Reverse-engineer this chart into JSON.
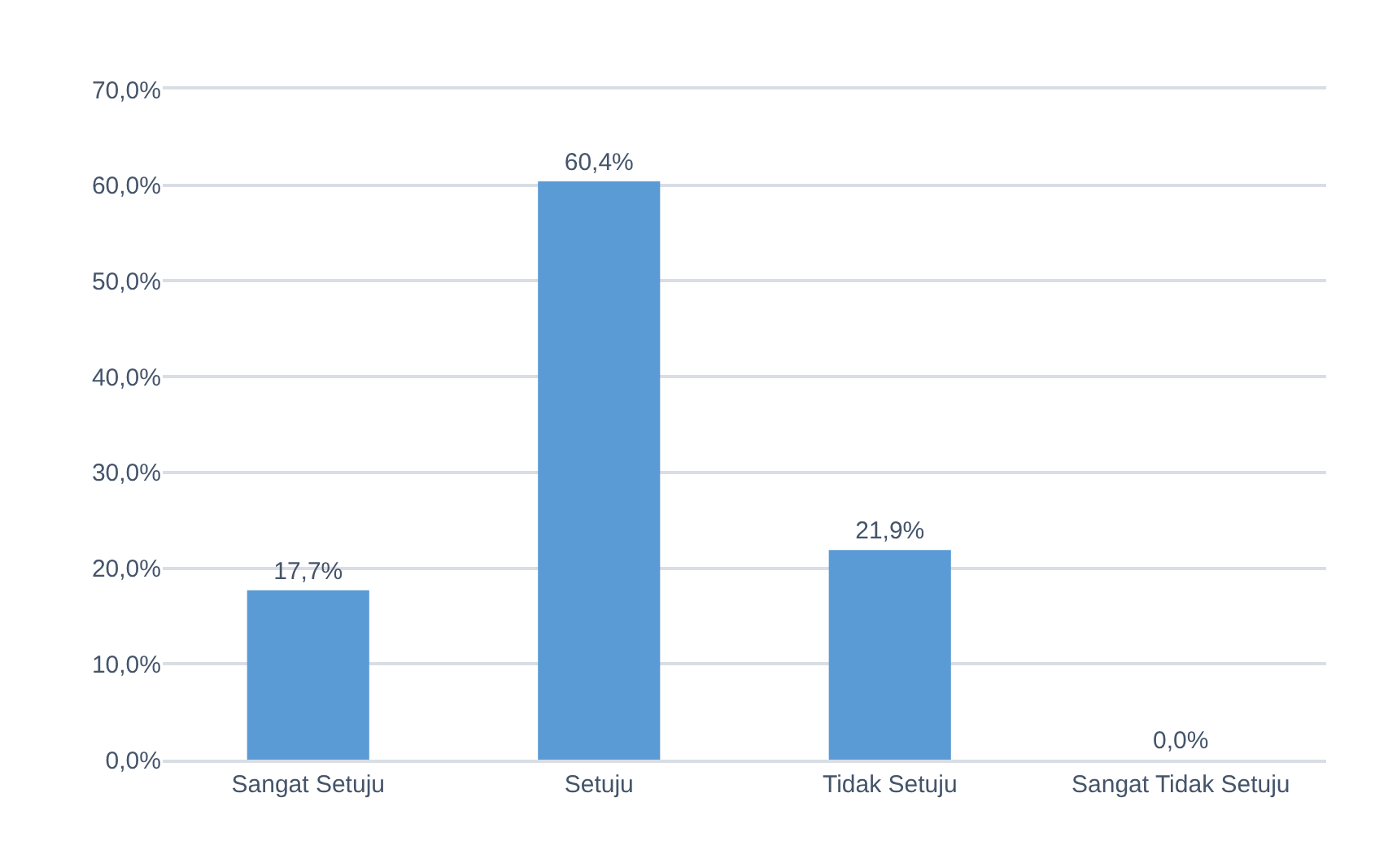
{
  "chart_data": {
    "type": "bar",
    "categories": [
      "Sangat Setuju",
      "Setuju",
      "Tidak Setuju",
      "Sangat Tidak Setuju"
    ],
    "values": [
      17.7,
      60.4,
      21.9,
      0.0
    ],
    "value_labels": [
      "17,7%",
      "60,4%",
      "21,9%",
      "0,0%"
    ],
    "color": "#5b9bd5",
    "ylim": [
      0,
      70
    ],
    "yticks": [
      {
        "value": 0,
        "label": "0,0%"
      },
      {
        "value": 10,
        "label": "10,0%"
      },
      {
        "value": 20,
        "label": "20,0%"
      },
      {
        "value": 30,
        "label": "30,0%"
      },
      {
        "value": 40,
        "label": "40,0%"
      },
      {
        "value": 50,
        "label": "50,0%"
      },
      {
        "value": 60,
        "label": "60,0%"
      },
      {
        "value": 70,
        "label": "70,0%"
      }
    ],
    "grid": "y"
  }
}
